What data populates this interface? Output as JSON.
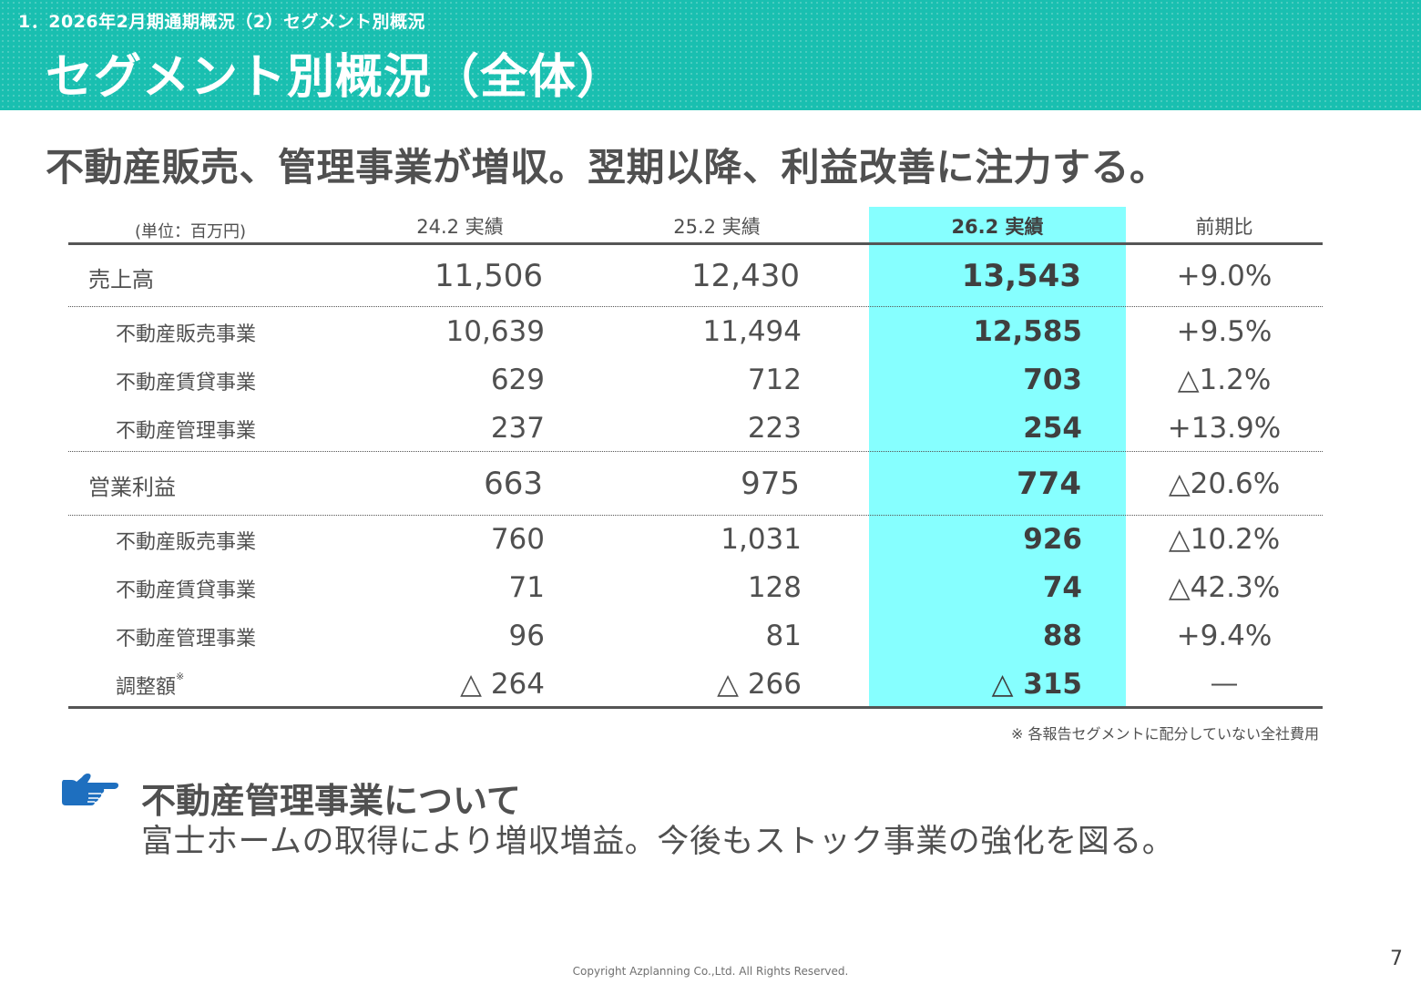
{
  "header": {
    "breadcrumb": "1．2026年2月期通期概況（2）セグメント別概況",
    "title": "セグメント別概況（全体）"
  },
  "headline": "不動産販売、管理事業が増収。翌期以降、利益改善に注力する。",
  "table": {
    "unit": "(単位：百万円)",
    "columns": [
      "24.2 実績",
      "25.2 実績",
      "26.2 実績",
      "前期比"
    ],
    "rows": [
      {
        "label": "売上高",
        "v1": "11,506",
        "v2": "12,430",
        "v3": "13,543",
        "change": "+9.0%"
      },
      {
        "label": "不動産販売事業",
        "v1": "10,639",
        "v2": "11,494",
        "v3": "12,585",
        "change": "+9.5%"
      },
      {
        "label": "不動産賃貸事業",
        "v1": "629",
        "v2": "712",
        "v3": "703",
        "change": "△1.2%"
      },
      {
        "label": "不動産管理事業",
        "v1": "237",
        "v2": "223",
        "v3": "254",
        "change": "+13.9%"
      },
      {
        "label": "営業利益",
        "v1": "663",
        "v2": "975",
        "v3": "774",
        "change": "△20.6%"
      },
      {
        "label": "不動産販売事業",
        "v1": "760",
        "v2": "1,031",
        "v3": "926",
        "change": "△10.2%"
      },
      {
        "label": "不動産賃貸事業",
        "v1": "71",
        "v2": "128",
        "v3": "74",
        "change": "△42.3%"
      },
      {
        "label": "不動産管理事業",
        "v1": "96",
        "v2": "81",
        "v3": "88",
        "change": "+9.4%"
      },
      {
        "label": "調整額",
        "note_mark": "※",
        "v1": "△ 264",
        "v2": "△ 266",
        "v3": "△ 315",
        "change": "―"
      }
    ],
    "footnote": "※ 各報告セグメントに配分していない全社費用"
  },
  "section": {
    "icon": "pointing-hand-icon",
    "title": "不動産管理事業について",
    "body": "富士ホームの取得により増収増益。今後もストック事業の強化を図る。"
  },
  "footer": {
    "copyright": "Copyright Azplanning Co.,Ltd. All Rights Reserved.",
    "page": "7"
  },
  "colors": {
    "header_bg": "#19bfb0",
    "highlight_col": "#86ffff",
    "icon_blue": "#1e6fbf"
  }
}
